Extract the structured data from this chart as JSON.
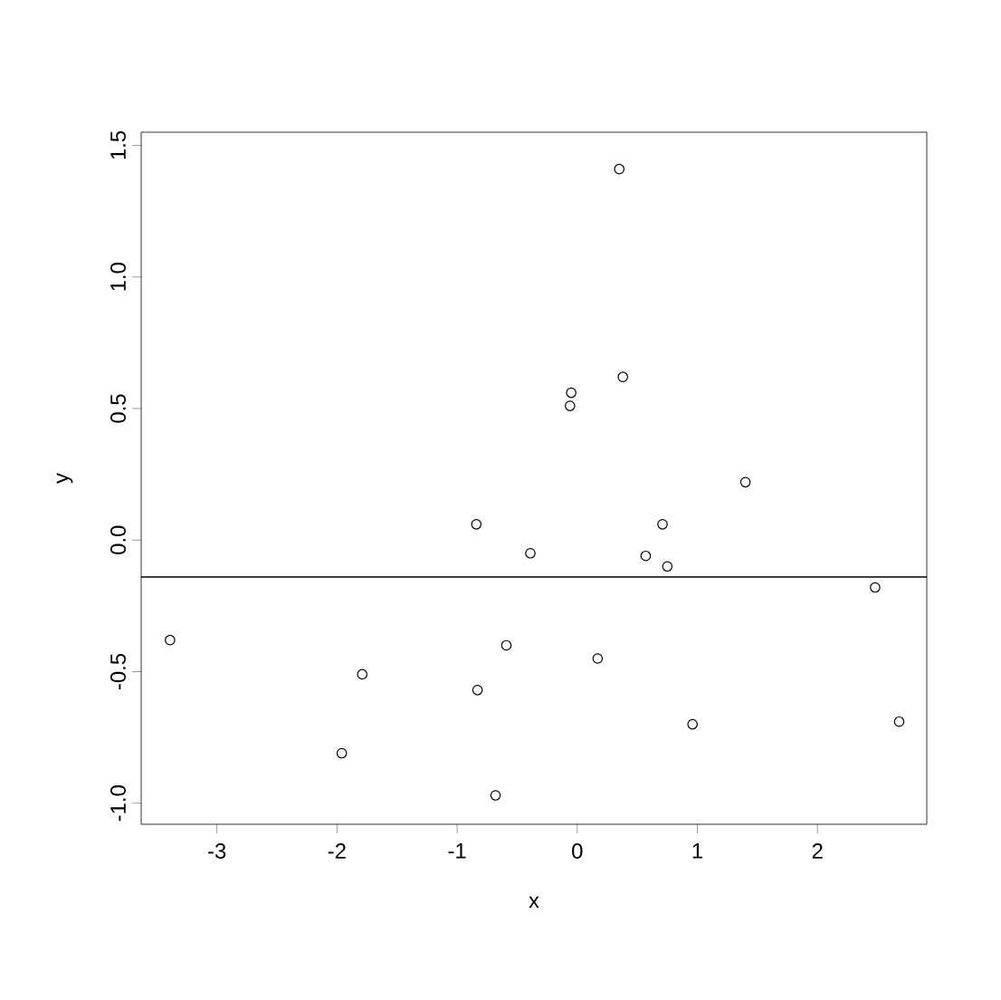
{
  "chart_data": {
    "type": "scatter",
    "xlabel": "x",
    "ylabel": "y",
    "color": "#000000",
    "marker": "circle",
    "x": [
      -3.39,
      -1.96,
      -1.79,
      -0.84,
      -0.83,
      -0.68,
      -0.59,
      -0.39,
      -0.06,
      -0.05,
      0.17,
      0.35,
      0.38,
      0.57,
      0.71,
      0.75,
      0.96,
      1.4,
      2.48,
      2.68
    ],
    "values": [
      -0.38,
      -0.81,
      -0.51,
      0.06,
      -0.57,
      -0.97,
      -0.4,
      -0.05,
      0.51,
      0.56,
      -0.45,
      1.41,
      0.62,
      -0.06,
      0.06,
      -0.1,
      -0.7,
      0.22,
      -0.18,
      -0.69
    ],
    "xlim": [
      -3.63,
      2.91
    ],
    "ylim": [
      -1.08,
      1.55
    ],
    "xticks": [
      -3,
      -2,
      -1,
      0,
      1,
      2
    ],
    "yticks": [
      {
        "value": -1,
        "label": "-1.0"
      },
      {
        "value": -0.5,
        "label": "-0.5"
      },
      {
        "value": 0,
        "label": "0.0"
      },
      {
        "value": 0.5,
        "label": "0.5"
      },
      {
        "value": 1,
        "label": "1.0"
      },
      {
        "value": 1.5,
        "label": "1.5"
      }
    ],
    "ref_lines": [
      {
        "axis": "y",
        "value": -0.14
      }
    ]
  }
}
